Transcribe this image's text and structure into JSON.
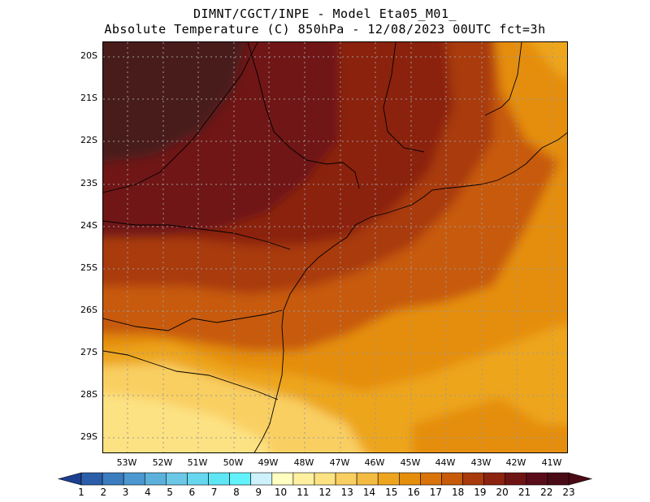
{
  "title": {
    "line1": "DIMNT/CGCT/INPE -  Model Eta05_M01_",
    "line2": "Absolute Temperature (C) 850hPa -  12/08/2023 00UTC fct=3h"
  },
  "map": {
    "type": "contour-map",
    "variable": "Absolute Temperature (C) 850hPa",
    "lat_labels": [
      "20S",
      "21S",
      "22S",
      "23S",
      "24S",
      "25S",
      "26S",
      "27S",
      "28S",
      "29S"
    ],
    "lon_labels": [
      "53W",
      "52W",
      "51W",
      "50W",
      "49W",
      "48W",
      "47W",
      "46W",
      "45W",
      "44W",
      "43W",
      "42W",
      "41W"
    ],
    "grid": true,
    "coastline_color": "#000000"
  },
  "colorbar": {
    "labels": [
      "1",
      "2",
      "3",
      "4",
      "5",
      "6",
      "7",
      "8",
      "9",
      "10",
      "11",
      "12",
      "13",
      "14",
      "15",
      "16",
      "17",
      "18",
      "19",
      "20",
      "21",
      "22",
      "23"
    ],
    "colors": [
      "#1d3f8f",
      "#2a5ea8",
      "#3b7cc0",
      "#4b98d0",
      "#5bb1dc",
      "#6bc7e6",
      "#66d7ef",
      "#5fe6f5",
      "#62f2fb",
      "#cdf2fb",
      "#ffffc0",
      "#fff0a0",
      "#fde283",
      "#f9cf62",
      "#f3bb42",
      "#eda51e",
      "#e58e0b",
      "#d9730a",
      "#c75a08",
      "#a93a0b",
      "#8b230f",
      "#6f1414",
      "#5a0c1a",
      "#4a0b16"
    ]
  }
}
